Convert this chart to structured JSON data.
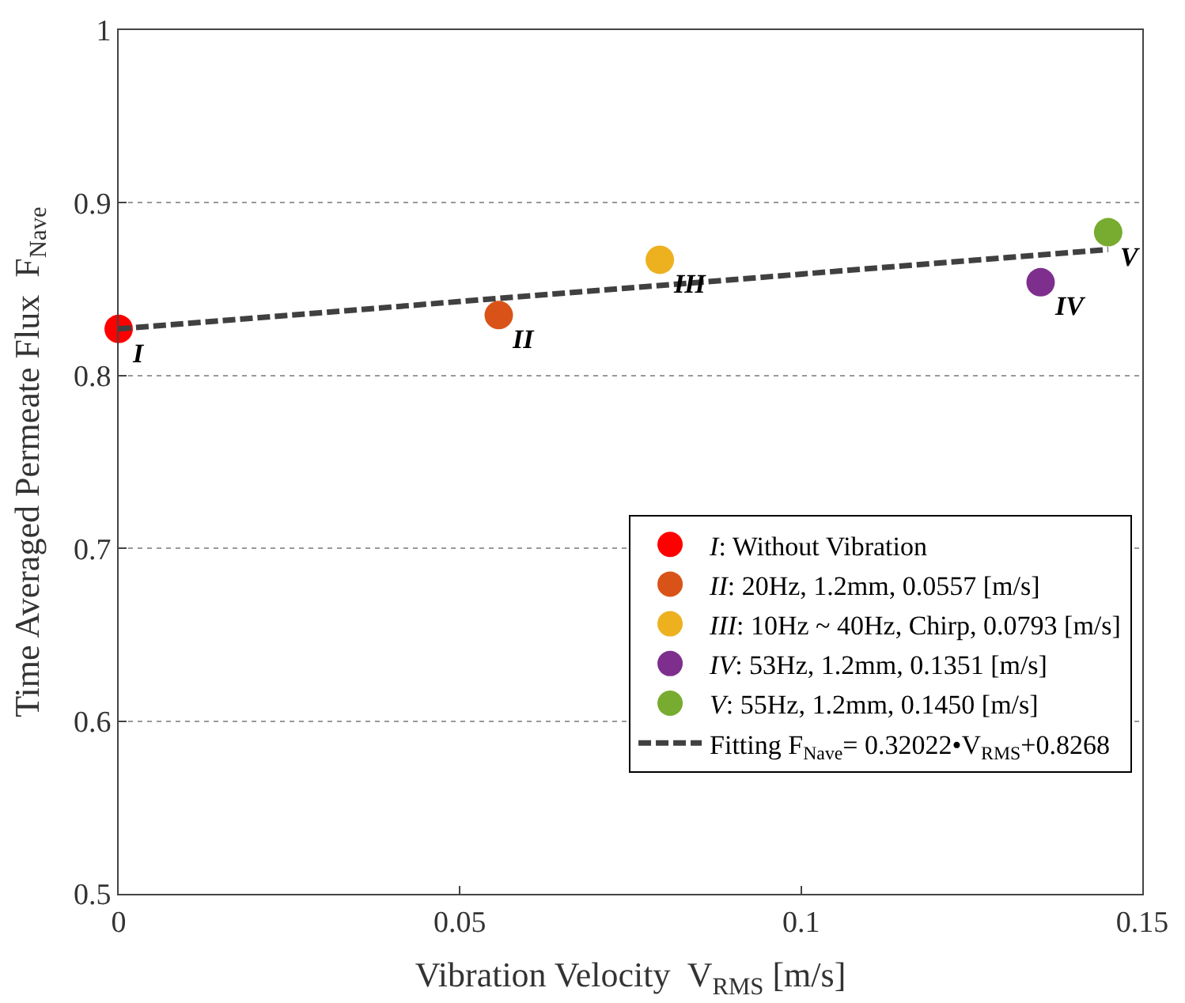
{
  "chart_data": {
    "type": "scatter",
    "xlabel": "Vibration Velocity  V$_{RMS}$ [m/s]",
    "ylabel": "Time Averaged Permeate Flux  F$_{Nave}$",
    "series": [
      {
        "name": "I: Without Vibration",
        "color": "#ff0000",
        "x": [
          0
        ],
        "values": [
          0.827
        ]
      },
      {
        "name": "II: 20Hz, 1.2mm, 0.0557 [m/s]",
        "color": "#d95319",
        "x": [
          0.0557
        ],
        "values": [
          0.835
        ]
      },
      {
        "name": "III: 10Hz ~ 40Hz, Chirp, 0.0793 [m/s]",
        "color": "#edb120",
        "x": [
          0.0793
        ],
        "values": [
          0.867
        ]
      },
      {
        "name": "IV: 53Hz, 1.2mm, 0.1351 [m/s]",
        "color": "#7e2f8e",
        "x": [
          0.1351
        ],
        "values": [
          0.854
        ]
      },
      {
        "name": "V: 55Hz, 1.2mm, 0.1450 [m/s]",
        "color": "#77ac30",
        "x": [
          0.145
        ],
        "values": [
          0.883
        ]
      },
      {
        "name": "Fitting F$_{Nave}$= 0.32022•V$_{RMS}$+0.8268",
        "type": "line",
        "color": "#404040",
        "line_style": "dashed",
        "marker": "none",
        "x": [
          0,
          0.145
        ],
        "values": [
          0.827,
          0.873
        ]
      }
    ],
    "marker": "circle",
    "annotations": [
      {
        "text": "I",
        "x": 0,
        "y": 0.827
      },
      {
        "text": "II",
        "x": 0.0557,
        "y": 0.835
      },
      {
        "text": "III",
        "x": 0.0793,
        "y": 0.867
      },
      {
        "text": "IV",
        "x": 0.1351,
        "y": 0.854
      },
      {
        "text": "V",
        "x": 0.145,
        "y": 0.883
      }
    ],
    "xlim": [
      0,
      0.15
    ],
    "xticks": [
      0,
      0.05,
      0.1,
      0.15
    ],
    "ylim": [
      0.5,
      1
    ],
    "yticks": [
      0.5,
      0.6,
      0.7,
      0.8,
      0.9,
      1
    ],
    "grid": "y",
    "legend": "bottom right"
  }
}
